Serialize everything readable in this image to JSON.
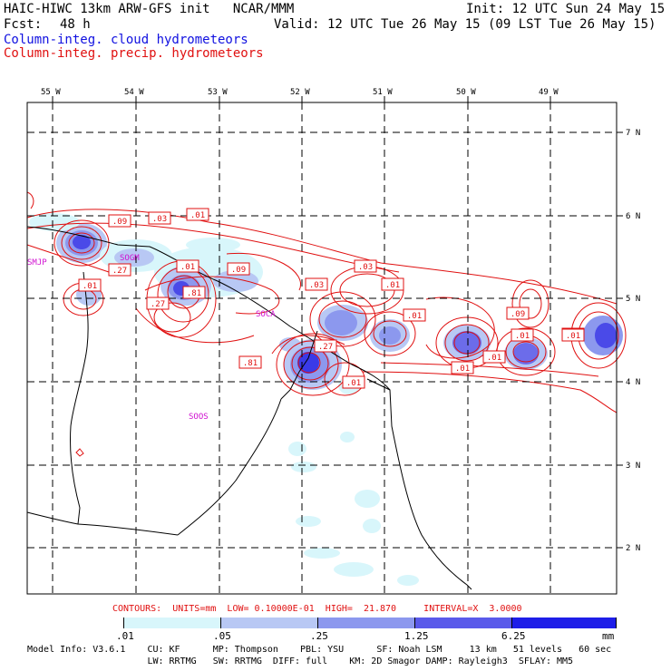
{
  "header": {
    "title_left": "HAIC-HIWC 13km ARW-GFS init   NCAR/MMM",
    "init": "Init: 12 UTC Sun 24 May 15",
    "fcst_label": "Fcst:",
    "fcst_value": "48 h",
    "valid": "Valid: 12 UTC Tue 26 May 15 (09 LST Tue 26 May 15)",
    "field_cloud": "Column-integ. cloud hydrometeors",
    "field_precip": "Column-integ. precip. hydrometeors"
  },
  "colors": {
    "cloud": "#1010e0",
    "precip": "#e01010",
    "fill_levels": [
      "#ffffff",
      "#d8f6fb",
      "#b8c8f4",
      "#8c98ee",
      "#5a5aea",
      "#1e1ee8"
    ]
  },
  "map": {
    "lon_labels": [
      "55 W",
      "54 W",
      "53 W",
      "52 W",
      "51 W",
      "50 W",
      "49 W"
    ],
    "lat_labels": [
      "7 N",
      "6 N",
      "5 N",
      "4 N",
      "3 N",
      "2 N"
    ],
    "stations": [
      "SMJP",
      "SOCA",
      "SOOS"
    ],
    "station_unlabeled": "SOGM",
    "contour_labels": [
      ".09",
      ".03",
      ".01",
      ".27",
      ".01",
      ".09",
      ".01",
      ".03",
      ".27",
      ".03",
      ".01",
      ".81",
      ".27",
      ".01",
      ".81",
      ".09",
      ".01",
      ".01",
      ".01",
      ".09",
      ".01",
      ".01",
      ".03"
    ]
  },
  "contour_info": "CONTOURS:  UNITS=mm  LOW= 0.10000E-01  HIGH=  21.870     INTERVAL=X  3.0000",
  "colorbar": {
    "ticks": [
      ".01",
      ".05",
      ".25",
      "1.25",
      "6.25"
    ],
    "units": "mm"
  },
  "model_info": {
    "line1": "Model Info: V3.6.1    CU: KF      MP: Thompson    PBL: YSU      SF: Noah LSM     13 km   51 levels   60 sec",
    "line2": "                      LW: RRTMG   SW: RRTMG  DIFF: full    KM: 2D Smagor DAMP: Rayleigh3  SFLAY: MM5"
  }
}
